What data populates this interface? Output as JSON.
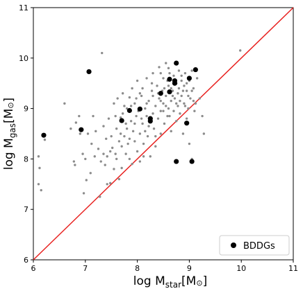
{
  "chart_data": {
    "type": "scatter",
    "title": "",
    "xlabel": {
      "main": "log M",
      "sub": "star",
      "unit": "[M",
      "sym": "⊙",
      "close": "]"
    },
    "ylabel": {
      "main": "log M",
      "sub": "gas",
      "unit": "[M",
      "sym": "⊙",
      "close": "]"
    },
    "xlim": [
      6,
      11
    ],
    "ylim": [
      6,
      11
    ],
    "xticks": [
      "6",
      "7",
      "8",
      "9",
      "10",
      "11"
    ],
    "yticks": [
      "6",
      "7",
      "8",
      "9",
      "10",
      "11"
    ],
    "grid": false,
    "legend": {
      "position": "bottom-right",
      "entries": [
        "BDDGs"
      ]
    },
    "reference_line": {
      "label": "",
      "x": [
        6,
        11
      ],
      "y": [
        6,
        11
      ],
      "color": "#e8201e"
    },
    "series": [
      {
        "name": "",
        "marker": "small-dot",
        "color": "#8c8c8c",
        "points": [
          [
            6.1,
            8.05
          ],
          [
            6.12,
            7.82
          ],
          [
            6.1,
            7.5
          ],
          [
            6.15,
            7.38
          ],
          [
            6.22,
            8.38
          ],
          [
            6.6,
            9.1
          ],
          [
            6.72,
            8.6
          ],
          [
            6.78,
            7.95
          ],
          [
            6.8,
            7.88
          ],
          [
            6.82,
            8.72
          ],
          [
            6.88,
            8.85
          ],
          [
            6.95,
            8.1
          ],
          [
            6.97,
            7.32
          ],
          [
            7.02,
            7.58
          ],
          [
            7.05,
            8.5
          ],
          [
            7.1,
            7.72
          ],
          [
            7.12,
            8.3
          ],
          [
            7.15,
            8.85
          ],
          [
            7.18,
            8.05
          ],
          [
            7.2,
            8.55
          ],
          [
            7.25,
            8.2
          ],
          [
            7.28,
            7.25
          ],
          [
            7.32,
            10.1
          ],
          [
            7.35,
            8.1
          ],
          [
            7.35,
            8.65
          ],
          [
            7.38,
            7.88
          ],
          [
            7.42,
            7.5
          ],
          [
            7.42,
            8.05
          ],
          [
            7.45,
            8.8
          ],
          [
            7.48,
            7.52
          ],
          [
            7.5,
            8.45
          ],
          [
            7.52,
            8.22
          ],
          [
            7.55,
            9.1
          ],
          [
            7.55,
            7.8
          ],
          [
            7.6,
            8.6
          ],
          [
            7.6,
            8.0
          ],
          [
            7.62,
            9.2
          ],
          [
            7.65,
            8.35
          ],
          [
            7.68,
            8.82
          ],
          [
            7.7,
            7.82
          ],
          [
            7.72,
            8.9
          ],
          [
            7.72,
            9.3
          ],
          [
            7.75,
            8.45
          ],
          [
            7.78,
            8.1
          ],
          [
            7.8,
            9.0
          ],
          [
            7.8,
            8.6
          ],
          [
            7.82,
            8.3
          ],
          [
            7.85,
            9.22
          ],
          [
            7.85,
            8.0
          ],
          [
            7.88,
            8.75
          ],
          [
            7.9,
            9.4
          ],
          [
            7.9,
            7.9
          ],
          [
            7.92,
            8.55
          ],
          [
            7.95,
            9.1
          ],
          [
            7.95,
            8.35
          ],
          [
            7.98,
            8.85
          ],
          [
            8.0,
            9.55
          ],
          [
            8.0,
            8.15
          ],
          [
            8.02,
            8.95
          ],
          [
            8.05,
            8.5
          ],
          [
            8.05,
            7.95
          ],
          [
            8.08,
            9.25
          ],
          [
            8.1,
            8.7
          ],
          [
            8.1,
            9.4
          ],
          [
            8.12,
            8.3
          ],
          [
            8.15,
            9.0
          ],
          [
            8.18,
            8.85
          ],
          [
            8.18,
            9.6
          ],
          [
            8.2,
            8.45
          ],
          [
            8.22,
            9.15
          ],
          [
            8.25,
            8.75
          ],
          [
            8.25,
            8.05
          ],
          [
            8.28,
            9.35
          ],
          [
            8.3,
            8.9
          ],
          [
            8.3,
            9.7
          ],
          [
            8.32,
            8.6
          ],
          [
            8.35,
            9.05
          ],
          [
            8.35,
            8.25
          ],
          [
            8.38,
            9.45
          ],
          [
            8.4,
            8.8
          ],
          [
            8.42,
            9.2
          ],
          [
            8.42,
            9.82
          ],
          [
            8.45,
            8.95
          ],
          [
            8.45,
            8.5
          ],
          [
            8.48,
            9.35
          ],
          [
            8.5,
            9.1
          ],
          [
            8.5,
            9.6
          ],
          [
            8.52,
            8.7
          ],
          [
            8.55,
            9.25
          ],
          [
            8.55,
            9.9
          ],
          [
            8.58,
            8.85
          ],
          [
            8.6,
            9.45
          ],
          [
            8.6,
            9.0
          ],
          [
            8.62,
            9.7
          ],
          [
            8.65,
            9.15
          ],
          [
            8.65,
            8.55
          ],
          [
            8.68,
            9.35
          ],
          [
            8.7,
            8.95
          ],
          [
            8.7,
            9.65
          ],
          [
            8.72,
            9.2
          ],
          [
            8.75,
            9.5
          ],
          [
            8.75,
            8.75
          ],
          [
            8.78,
            9.05
          ],
          [
            8.8,
            9.4
          ],
          [
            8.8,
            9.75
          ],
          [
            8.82,
            8.9
          ],
          [
            8.85,
            9.25
          ],
          [
            8.85,
            9.55
          ],
          [
            8.88,
            8.5
          ],
          [
            8.9,
            9.1
          ],
          [
            8.9,
            9.45
          ],
          [
            8.92,
            9.7
          ],
          [
            8.95,
            8.8
          ],
          [
            8.95,
            9.35
          ],
          [
            8.98,
            9.0
          ],
          [
            9.0,
            9.55
          ],
          [
            9.0,
            8.3
          ],
          [
            9.02,
            9.2
          ],
          [
            9.05,
            8.0
          ],
          [
            9.05,
            9.75
          ],
          [
            9.08,
            9.4
          ],
          [
            9.1,
            8.95
          ],
          [
            9.12,
            9.1
          ],
          [
            9.15,
            9.6
          ],
          [
            9.2,
            9.2
          ],
          [
            9.25,
            8.85
          ],
          [
            9.28,
            8.5
          ],
          [
            9.98,
            10.15
          ],
          [
            6.9,
            8.5
          ],
          [
            7.0,
            8.0
          ],
          [
            7.3,
            7.95
          ],
          [
            7.4,
            8.4
          ],
          [
            7.58,
            8.1
          ],
          [
            7.65,
            7.6
          ],
          [
            7.7,
            8.25
          ],
          [
            7.75,
            9.05
          ],
          [
            7.85,
            8.4
          ],
          [
            7.95,
            8.7
          ],
          [
            8.05,
            9.3
          ],
          [
            8.12,
            8.05
          ],
          [
            8.15,
            8.55
          ],
          [
            8.22,
            8.65
          ],
          [
            8.28,
            9.5
          ],
          [
            8.35,
            8.45
          ],
          [
            8.4,
            9.3
          ],
          [
            8.45,
            9.15
          ],
          [
            8.52,
            9.4
          ],
          [
            8.58,
            9.55
          ],
          [
            8.62,
            8.85
          ],
          [
            8.68,
            9.25
          ],
          [
            8.72,
            9.5
          ],
          [
            8.78,
            9.3
          ],
          [
            8.82,
            9.15
          ],
          [
            8.88,
            9.35
          ],
          [
            8.92,
            9.05
          ],
          [
            8.98,
            9.25
          ],
          [
            9.02,
            9.6
          ],
          [
            9.08,
            9.15
          ],
          [
            8.5,
            8.95
          ],
          [
            8.3,
            9.25
          ],
          [
            8.18,
            9.1
          ],
          [
            8.08,
            8.8
          ],
          [
            7.98,
            9.2
          ],
          [
            7.88,
            9.05
          ],
          [
            7.78,
            8.7
          ],
          [
            7.68,
            8.5
          ],
          [
            7.58,
            8.85
          ],
          [
            7.48,
            8.15
          ],
          [
            8.45,
            9.7
          ],
          [
            8.55,
            9.05
          ],
          [
            8.65,
            9.4
          ],
          [
            8.75,
            9.1
          ],
          [
            8.85,
            9.65
          ],
          [
            8.95,
            9.5
          ],
          [
            9.05,
            9.35
          ],
          [
            8.6,
            9.8
          ]
        ]
      },
      {
        "name": "BDDGs",
        "marker": "large-dot",
        "color": "#000000",
        "points": [
          [
            6.2,
            8.47
          ],
          [
            6.92,
            8.58
          ],
          [
            7.07,
            9.73
          ],
          [
            7.7,
            8.76
          ],
          [
            7.85,
            8.96
          ],
          [
            8.05,
            8.99
          ],
          [
            8.25,
            8.8
          ],
          [
            8.25,
            8.75
          ],
          [
            8.45,
            9.3
          ],
          [
            8.62,
            9.33
          ],
          [
            8.62,
            9.58
          ],
          [
            8.72,
            9.55
          ],
          [
            8.72,
            9.5
          ],
          [
            8.75,
            9.9
          ],
          [
            8.75,
            7.95
          ],
          [
            8.95,
            8.71
          ],
          [
            9.0,
            9.6
          ],
          [
            9.05,
            7.95
          ],
          [
            9.12,
            9.77
          ]
        ]
      }
    ]
  }
}
